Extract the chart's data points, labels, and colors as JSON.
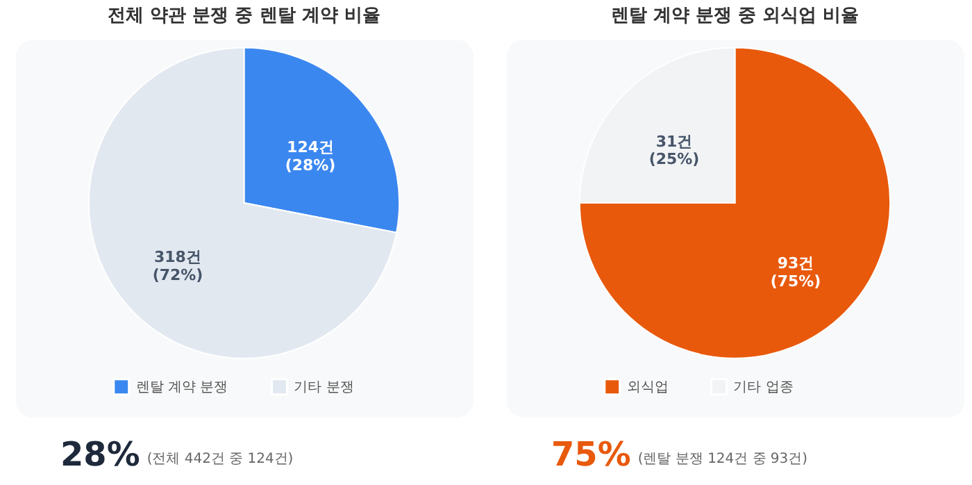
{
  "chart_data": [
    {
      "type": "pie",
      "title": "전체 약관 분쟁 중 렌탈 계약 비율",
      "categories": [
        "렌탈 계약 분쟁",
        "기타 분쟁"
      ],
      "values": [
        124,
        318
      ],
      "colors": [
        "#3b87f0",
        "#e2e8f0"
      ],
      "value_labels": [
        "124건\n(28%)",
        "318건\n(72%)"
      ],
      "legend": "bottom",
      "annotations": [
        "28%",
        "(전체 442건 중 124건)"
      ]
    },
    {
      "type": "pie",
      "title": "렌탈 계약 분쟁 중 외식업 비율",
      "categories": [
        "외식업",
        "기타 업종"
      ],
      "values": [
        93,
        31
      ],
      "colors": [
        "#e8590c",
        "#f1f3f5"
      ],
      "value_labels": [
        "93건\n(75%)",
        "31건\n(25%)"
      ],
      "legend": "bottom",
      "annotations": [
        "75%",
        "(렌탈 분쟁 124건 중 93건)"
      ]
    }
  ]
}
